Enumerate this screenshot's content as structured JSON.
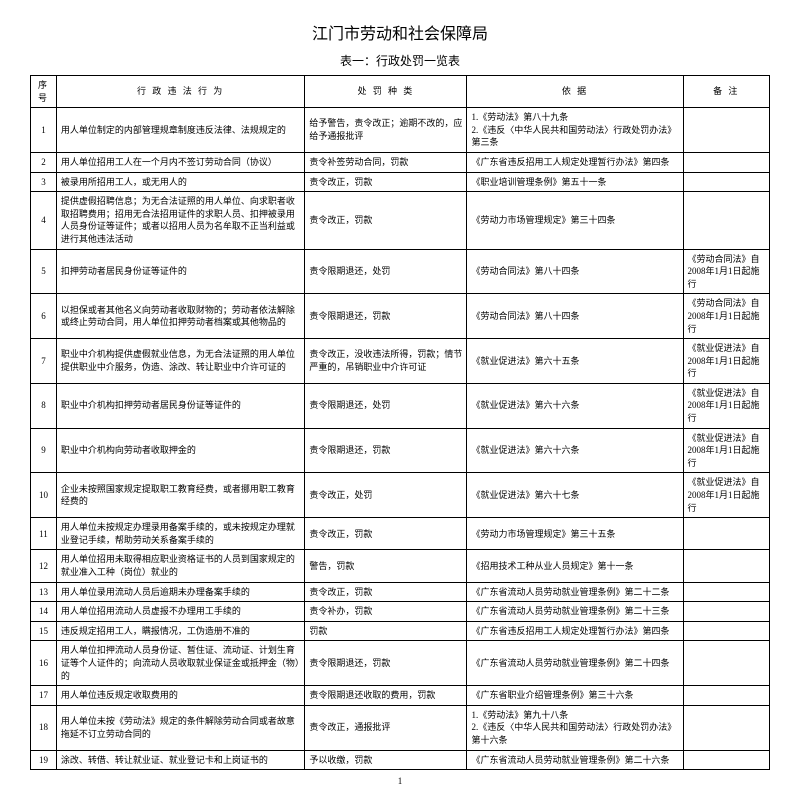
{
  "title": "江门市劳动和社会保障局",
  "subtitle": "表一：行政处罚一览表",
  "headers": {
    "num": "序号",
    "action": "行 政 违 法 行 为",
    "penalty": "处 罚 种 类",
    "basis": "依     据",
    "note": "备  注"
  },
  "rows": [
    {
      "n": "1",
      "a": "用人单位制定的内部管理规章制度违反法律、法规规定的",
      "p": "给予警告，责令改正；逾期不改的，应给予通报批评",
      "b": "1.《劳动法》第八十九条\n2.《违反〈中华人民共和国劳动法〉行政处罚办法》第三条",
      "note": ""
    },
    {
      "n": "2",
      "a": "用人单位招用工人在一个月内不签订劳动合同（协议）",
      "p": "责令补签劳动合同，罚款",
      "b": "《广东省违反招用工人规定处理暂行办法》第四条",
      "note": ""
    },
    {
      "n": "3",
      "a": "被录用所招用工人，或无用人的",
      "p": "责令改正，罚款",
      "b": "《职业培训管理条例》第五十一条",
      "note": ""
    },
    {
      "n": "4",
      "a": "提供虚假招聘信息；为无合法证照的用人单位、向求职者收取招聘费用；招用无合法招用证件的求职人员、扣押被录用人员身份证等证件；或者以招用人员为名牟取不正当利益或进行其他违法活动",
      "p": "责令改正，罚款",
      "b": "《劳动力市场管理规定》第三十四条",
      "note": ""
    },
    {
      "n": "5",
      "a": "扣押劳动者居民身份证等证件的",
      "p": "责令限期退还，处罚",
      "b": "《劳动合同法》第八十四条",
      "note": "《劳动合同法》自2008年1月1日起施行"
    },
    {
      "n": "6",
      "a": "以担保或者其他名义向劳动者收取财物的；劳动者依法解除或终止劳动合同，用人单位扣押劳动者档案或其他物品的",
      "p": "责令限期退还，罚款",
      "b": "《劳动合同法》第八十四条",
      "note": "《劳动合同法》自2008年1月1日起施行"
    },
    {
      "n": "7",
      "a": "职业中介机构提供虚假就业信息，为无合法证照的用人单位提供职业中介服务，伪造、涂改、转让职业中介许可证的",
      "p": "责令改正，没收违法所得，罚款；情节严重的，吊销职业中介许可证",
      "b": "《就业促进法》第六十五条",
      "note": "《就业促进法》自2008年1月1日起施行"
    },
    {
      "n": "8",
      "a": "职业中介机构扣押劳动者居民身份证等证件的",
      "p": "责令限期退还，处罚",
      "b": "《就业促进法》第六十六条",
      "note": "《就业促进法》自2008年1月1日起施行"
    },
    {
      "n": "9",
      "a": "职业中介机构向劳动者收取押金的",
      "p": "责令限期退还，罚款",
      "b": "《就业促进法》第六十六条",
      "note": "《就业促进法》自2008年1月1日起施行"
    },
    {
      "n": "10",
      "a": "企业未按照国家规定提取职工教育经费，或者挪用职工教育经费的",
      "p": "责令改正，处罚",
      "b": "《就业促进法》第六十七条",
      "note": "《就业促进法》自2008年1月1日起施行"
    },
    {
      "n": "11",
      "a": "用人单位未按规定办理录用备案手续的，或未按规定办理就业登记手续，帮助劳动关系备案手续的",
      "p": "责令改正，罚款",
      "b": "《劳动力市场管理规定》第三十五条",
      "note": ""
    },
    {
      "n": "12",
      "a": "用人单位招用未取得相应职业资格证书的人员到国家规定的就业准入工种（岗位）就业的",
      "p": "警告，罚款",
      "b": "《招用技术工种从业人员规定》第十一条",
      "note": ""
    },
    {
      "n": "13",
      "a": "用人单位录用流动人员后逾期未办理备案手续的",
      "p": "责令改正，罚款",
      "b": "《广东省流动人员劳动就业管理条例》第二十二条",
      "note": ""
    },
    {
      "n": "14",
      "a": "用人单位招用流动人员虚报不办理用工手续的",
      "p": "责令补办，罚款",
      "b": "《广东省流动人员劳动就业管理条例》第二十三条",
      "note": ""
    },
    {
      "n": "15",
      "a": "违反规定招用工人，瞒报情况，工伪造册不准的",
      "p": "罚款",
      "b": "《广东省违反招用工人规定处理暂行办法》第四条",
      "note": ""
    },
    {
      "n": "16",
      "a": "用人单位扣押流动人员身份证、暂住证、流动证、计划生育证等个人证件的；向流动人员收取就业保证金或抵押金（物）的",
      "p": "责令限期退还，罚款",
      "b": "《广东省流动人员劳动就业管理条例》第二十四条",
      "note": ""
    },
    {
      "n": "17",
      "a": "用人单位违反规定收取费用的",
      "p": "责令限期退还收取的费用，罚款",
      "b": "《广东省职业介绍管理条例》第三十六条",
      "note": ""
    },
    {
      "n": "18",
      "a": "用人单位未按《劳动法》规定的条件解除劳动合同或者故意拖延不订立劳动合同的",
      "p": "责令改正，通报批评",
      "b": "1.《劳动法》第九十八条\n2.《违反〈中华人民共和国劳动法〉行政处罚办法》第十六条",
      "note": ""
    },
    {
      "n": "19",
      "a": "涂改、转借、转让就业证、就业登记卡和上岗证书的",
      "p": "予以收缴，罚款",
      "b": "《广东省流动人员劳动就业管理条例》第二十六条",
      "note": ""
    }
  ],
  "pageNum": "1"
}
